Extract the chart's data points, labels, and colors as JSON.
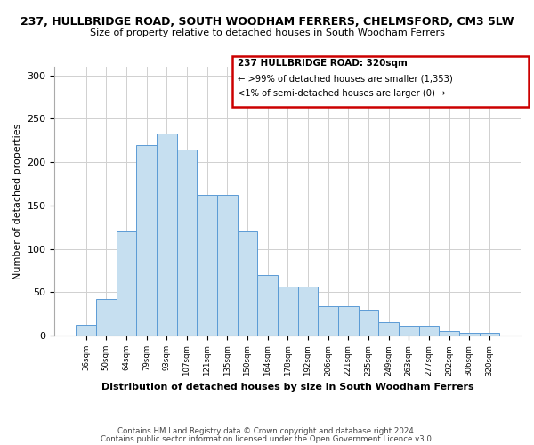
{
  "title": "237, HULLBRIDGE ROAD, SOUTH WOODHAM FERRERS, CHELMSFORD, CM3 5LW",
  "subtitle": "Size of property relative to detached houses in South Woodham Ferrers",
  "xlabel": "Distribution of detached houses by size in South Woodham Ferrers",
  "ylabel": "Number of detached properties",
  "footer1": "Contains HM Land Registry data © Crown copyright and database right 2024.",
  "footer2": "Contains public sector information licensed under the Open Government Licence v3.0.",
  "categories": [
    "36sqm",
    "50sqm",
    "64sqm",
    "79sqm",
    "93sqm",
    "107sqm",
    "121sqm",
    "135sqm",
    "150sqm",
    "164sqm",
    "178sqm",
    "192sqm",
    "206sqm",
    "221sqm",
    "235sqm",
    "249sqm",
    "263sqm",
    "277sqm",
    "292sqm",
    "306sqm",
    "320sqm"
  ],
  "bar_values": [
    12,
    42,
    120,
    220,
    233,
    215,
    162,
    162,
    120,
    70,
    57,
    57,
    34,
    34,
    30,
    15,
    11,
    11,
    5,
    3,
    3
  ],
  "bar_color": "#c6dff0",
  "bar_edge_color": "#5b9bd5",
  "ylim": [
    0,
    310
  ],
  "yticks": [
    0,
    50,
    100,
    150,
    200,
    250,
    300
  ],
  "legend_title": "237 HULLBRIDGE ROAD: 320sqm",
  "legend_line1": "← >99% of detached houses are smaller (1,353)",
  "legend_line2": "<1% of semi-detached houses are larger (0) →",
  "legend_box_color": "#cc0000",
  "grid_color": "#d0d0d0",
  "title_fontsize": 9,
  "subtitle_fontsize": 8
}
